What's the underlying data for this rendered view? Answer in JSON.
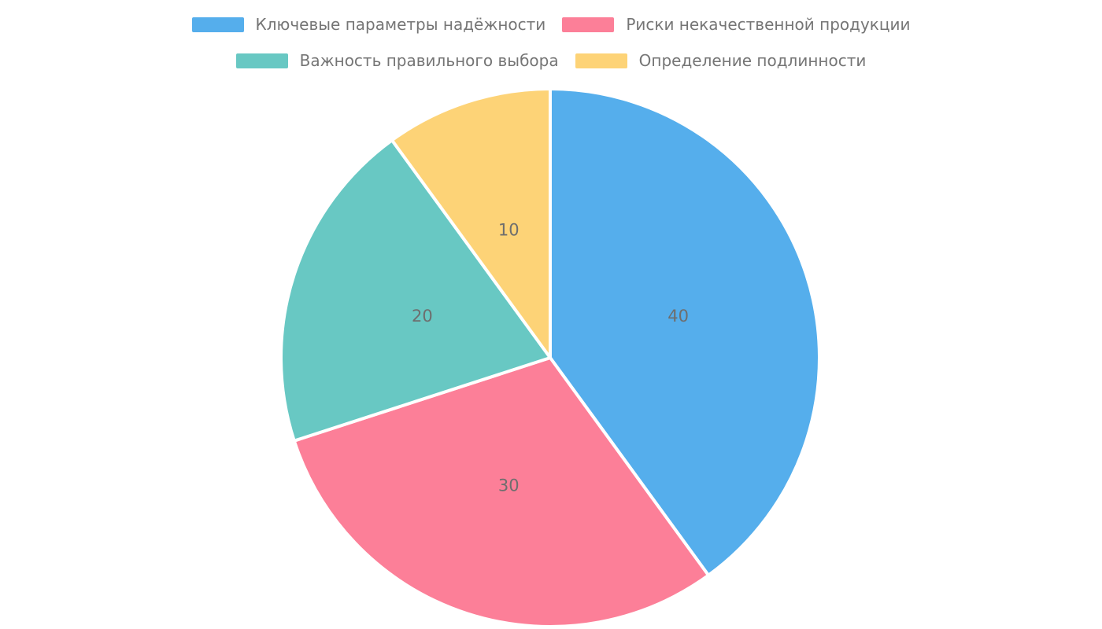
{
  "chart_data": {
    "type": "pie",
    "title": "",
    "labels": [
      "Ключевые параметры надёжности",
      "Риски некачественной продукции",
      "Важность правильного выбора",
      "Определение подлинности"
    ],
    "values": [
      40,
      30,
      20,
      10
    ],
    "data_labels": [
      "40",
      "30",
      "20",
      "10"
    ],
    "colors": [
      "#55AEEC",
      "#FC7F98",
      "#68C8C3",
      "#FDD377"
    ],
    "slice_border_color": "#FFFFFF",
    "label_color": "#6E6E6E",
    "legend_text_color": "#757575",
    "background_color": "#FFFFFF",
    "start_angle": "top",
    "direction": "clockwise",
    "label_position": "inside",
    "legend_position": "top-center",
    "legend_columns": 2
  }
}
